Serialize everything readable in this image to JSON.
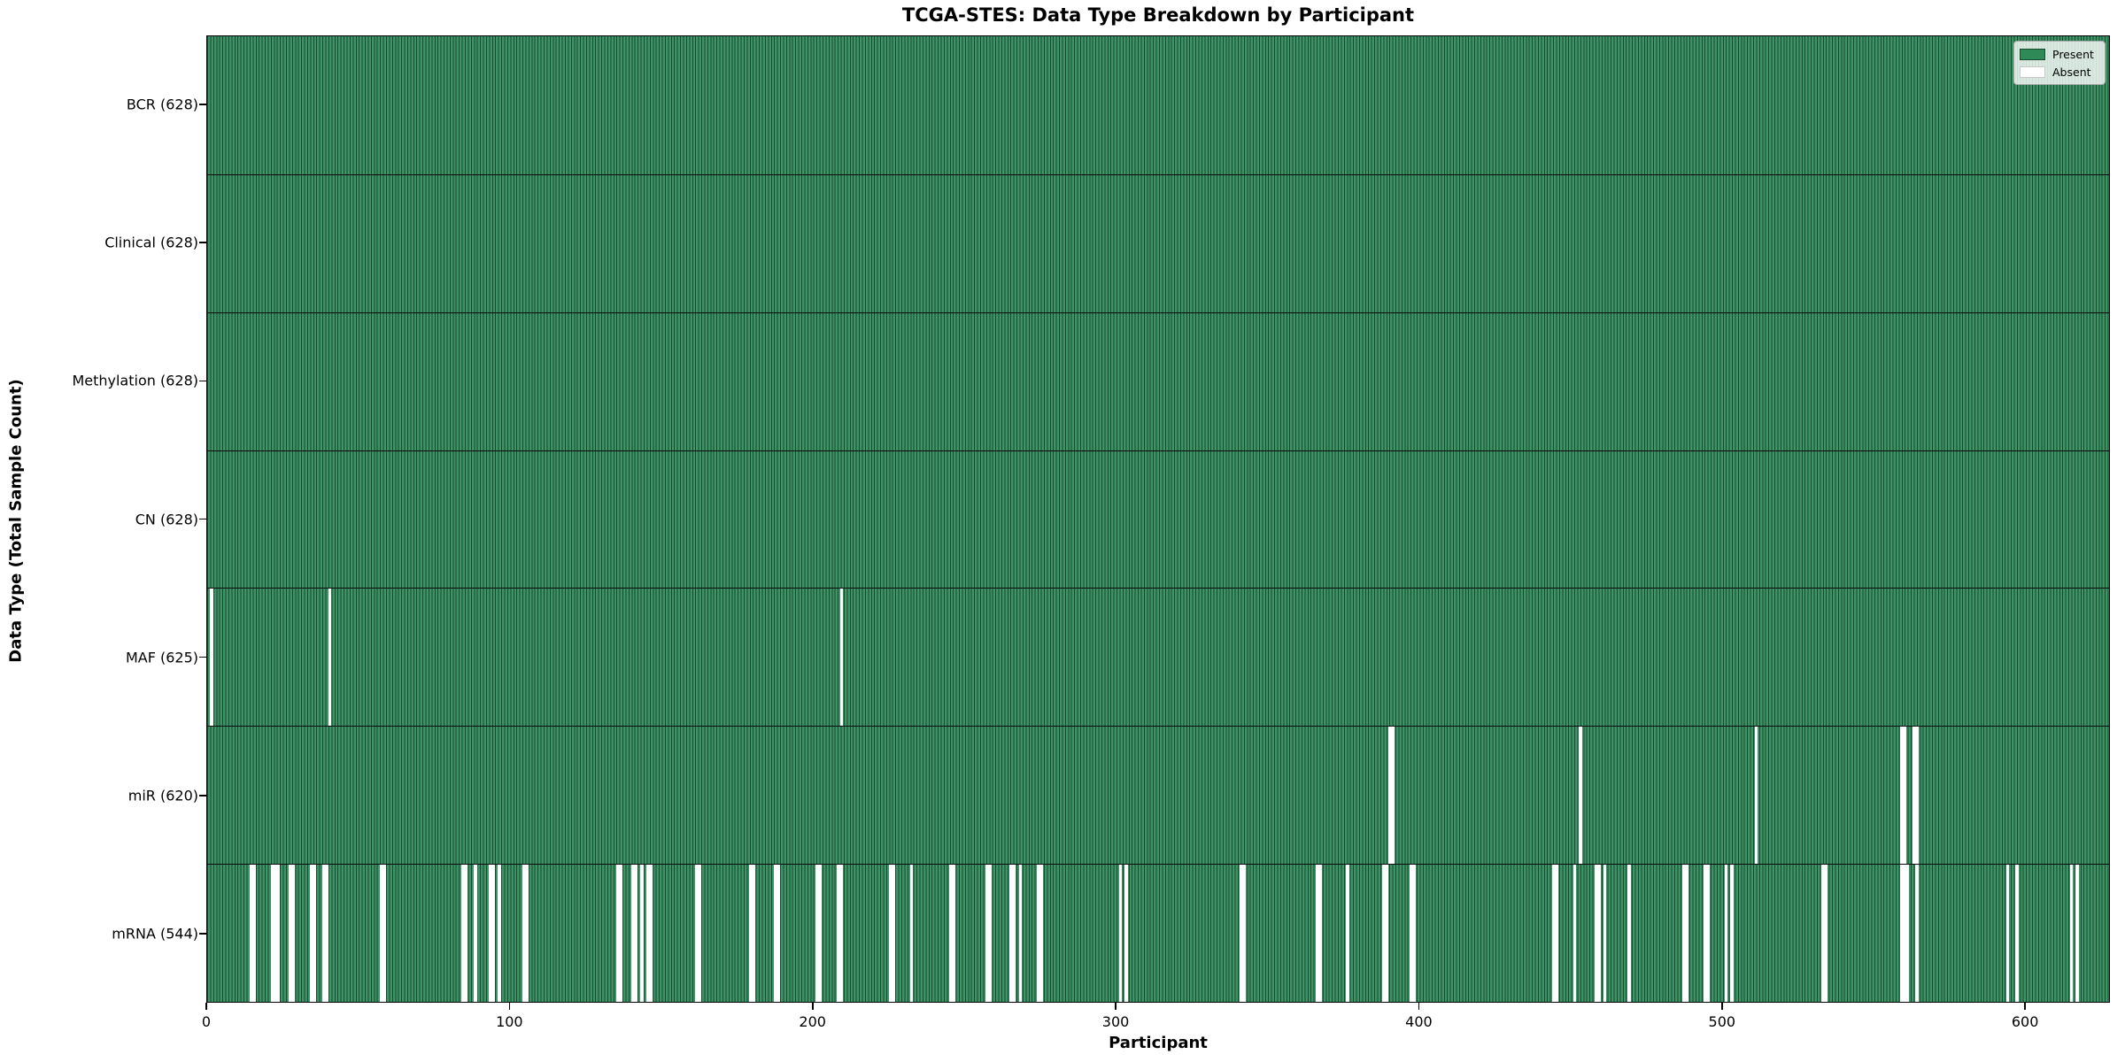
{
  "chart_data": {
    "type": "heatmap",
    "title": "TCGA-STES: Data Type Breakdown by Participant",
    "xlabel": "Participant",
    "ylabel": "Data Type (Total Sample Count)",
    "n_participants": 628,
    "x_ticks": [
      0,
      100,
      200,
      300,
      400,
      500,
      600
    ],
    "xlim": [
      0,
      628
    ],
    "grid": false,
    "legend_position": "upper right",
    "colors": {
      "present_fill": "#3e9466",
      "cell_edge": "#17492f",
      "legend_present": "#2e8b57",
      "absent": "#ffffff"
    },
    "legend": [
      {
        "label": "Present",
        "color": "#2e8b57"
      },
      {
        "label": "Absent",
        "color": "#ffffff"
      }
    ],
    "rows": [
      {
        "name": "BCR",
        "label": "BCR (628)",
        "present_count": 628,
        "absent_participants": []
      },
      {
        "name": "Clinical",
        "label": "Clinical (628)",
        "present_count": 628,
        "absent_participants": []
      },
      {
        "name": "Methylation",
        "label": "Methylation (628)",
        "present_count": 628,
        "absent_participants": []
      },
      {
        "name": "CN",
        "label": "CN (628)",
        "present_count": 628,
        "absent_participants": []
      },
      {
        "name": "MAF",
        "label": "MAF (625)",
        "present_count": 625,
        "absent_participants": [
          1,
          40,
          209
        ]
      },
      {
        "name": "miR",
        "label": "miR (620)",
        "present_count": 620,
        "absent_participants": [
          390,
          391,
          453,
          511,
          559,
          560,
          563,
          564
        ]
      },
      {
        "name": "mRNA",
        "label": "mRNA (544)",
        "present_count": 544,
        "absent_participants": [
          14,
          15,
          21,
          22,
          23,
          27,
          28,
          34,
          35,
          38,
          39,
          57,
          58,
          84,
          85,
          88,
          93,
          94,
          96,
          104,
          105,
          135,
          136,
          140,
          141,
          143,
          145,
          146,
          161,
          162,
          179,
          180,
          187,
          188,
          201,
          202,
          208,
          209,
          225,
          226,
          232,
          245,
          246,
          257,
          258,
          265,
          266,
          268,
          274,
          275,
          301,
          303,
          341,
          342,
          366,
          367,
          376,
          388,
          389,
          397,
          398,
          444,
          445,
          451,
          458,
          459,
          461,
          469,
          487,
          488,
          494,
          495,
          501,
          503,
          533,
          534,
          559,
          560,
          561,
          564,
          594,
          597,
          615,
          617
        ]
      }
    ]
  }
}
